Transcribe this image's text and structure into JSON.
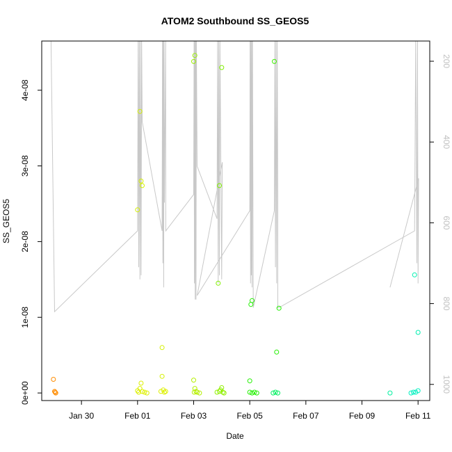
{
  "chart_data": {
    "type": "scatter",
    "title": "ATOM2 Southbound SS_GEOS5",
    "xlabel": "Date",
    "ylabel": "SS_GEOS5",
    "xlim": [
      "2016-01-28T14:00",
      "2016-02-11T10:00"
    ],
    "ylim": [
      -1e-09,
      4.65e-08
    ],
    "y2lim": [
      1040,
      150
    ],
    "x_ticks": [
      {
        "date": "2016-01-30T00:00",
        "label": "Jan 30"
      },
      {
        "date": "2016-02-01T00:00",
        "label": "Feb 01"
      },
      {
        "date": "2016-02-03T00:00",
        "label": "Feb 03"
      },
      {
        "date": "2016-02-05T00:00",
        "label": "Feb 05"
      },
      {
        "date": "2016-02-07T00:00",
        "label": "Feb 07"
      },
      {
        "date": "2016-02-09T00:00",
        "label": "Feb 09"
      },
      {
        "date": "2016-02-11T00:00",
        "label": "Feb 11"
      }
    ],
    "y_ticks": [
      {
        "value": 0,
        "label": "0e+00"
      },
      {
        "value": 1e-08,
        "label": "1e-08"
      },
      {
        "value": 2e-08,
        "label": "2e-08"
      },
      {
        "value": 3e-08,
        "label": "3e-08"
      },
      {
        "value": 4e-08,
        "label": "4e-08"
      }
    ],
    "y2_ticks": [
      {
        "value": 200,
        "label": "200"
      },
      {
        "value": 400,
        "label": "400"
      },
      {
        "value": 600,
        "label": "600"
      },
      {
        "value": 800,
        "label": "800"
      },
      {
        "value": 1000,
        "label": "1000"
      }
    ],
    "points": [
      {
        "date": "2016-01-29T00:00",
        "y": 1.8e-09,
        "color": "#ff8c00"
      },
      {
        "date": "2016-01-29T01:00",
        "y": 2e-10,
        "color": "#ff8c00"
      },
      {
        "date": "2016-01-29T02:00",
        "y": 0.0,
        "color": "#ff8c00"
      },
      {
        "date": "2016-01-29T01:30",
        "y": 1e-10,
        "color": "#ff8c00"
      },
      {
        "date": "2016-02-01T00:00",
        "y": 2.42e-08,
        "color": "#d4f000"
      },
      {
        "date": "2016-02-01T02:00",
        "y": 3.72e-08,
        "color": "#d4f000"
      },
      {
        "date": "2016-02-01T03:00",
        "y": 2.8e-08,
        "color": "#d4f000"
      },
      {
        "date": "2016-02-01T04:00",
        "y": 2.74e-08,
        "color": "#d4f000"
      },
      {
        "date": "2016-02-01T03:00",
        "y": 1.3e-09,
        "color": "#ddf000"
      },
      {
        "date": "2016-02-01T00:00",
        "y": 3e-10,
        "color": "#ddf000"
      },
      {
        "date": "2016-02-01T01:00",
        "y": 1e-10,
        "color": "#ddf000"
      },
      {
        "date": "2016-02-01T02:00",
        "y": 6e-10,
        "color": "#ddf000"
      },
      {
        "date": "2016-02-01T04:00",
        "y": 2e-10,
        "color": "#ddf000"
      },
      {
        "date": "2016-02-01T06:00",
        "y": 1e-10,
        "color": "#ddf000"
      },
      {
        "date": "2016-02-01T08:00",
        "y": 0.0,
        "color": "#ddf000"
      },
      {
        "date": "2016-02-01T21:00",
        "y": 6e-09,
        "color": "#d4f000"
      },
      {
        "date": "2016-02-01T21:00",
        "y": 2.2e-09,
        "color": "#d4f000"
      },
      {
        "date": "2016-02-01T20:00",
        "y": 2e-10,
        "color": "#ddf000"
      },
      {
        "date": "2016-02-01T22:00",
        "y": 4e-10,
        "color": "#ddf000"
      },
      {
        "date": "2016-02-01T23:00",
        "y": 1e-10,
        "color": "#ddf000"
      },
      {
        "date": "2016-02-02T00:00",
        "y": 2e-10,
        "color": "#ddf000"
      },
      {
        "date": "2016-02-03T00:00",
        "y": 4.38e-08,
        "color": "#9af000"
      },
      {
        "date": "2016-02-03T01:00",
        "y": 4.46e-08,
        "color": "#9af000"
      },
      {
        "date": "2016-02-03T00:00",
        "y": 1.7e-09,
        "color": "#b5f000"
      },
      {
        "date": "2016-02-03T01:00",
        "y": 6e-10,
        "color": "#b5f000"
      },
      {
        "date": "2016-02-03T02:00",
        "y": 2e-10,
        "color": "#b5f000"
      },
      {
        "date": "2016-02-03T00:30",
        "y": 1e-10,
        "color": "#b5f000"
      },
      {
        "date": "2016-02-03T03:00",
        "y": 1e-10,
        "color": "#b5f000"
      },
      {
        "date": "2016-02-03T05:00",
        "y": 0.0,
        "color": "#b5f000"
      },
      {
        "date": "2016-02-03T22:00",
        "y": 2.74e-08,
        "color": "#80f000"
      },
      {
        "date": "2016-02-04T00:00",
        "y": 4.3e-08,
        "color": "#80f000"
      },
      {
        "date": "2016-02-03T21:00",
        "y": 1.45e-08,
        "color": "#80f000"
      },
      {
        "date": "2016-02-03T23:00",
        "y": 4e-10,
        "color": "#90f000"
      },
      {
        "date": "2016-02-04T00:00",
        "y": 7e-10,
        "color": "#90f000"
      },
      {
        "date": "2016-02-03T20:00",
        "y": 1e-10,
        "color": "#90f000"
      },
      {
        "date": "2016-02-03T22:00",
        "y": 2e-10,
        "color": "#90f000"
      },
      {
        "date": "2016-02-04T01:00",
        "y": 1e-10,
        "color": "#90f000"
      },
      {
        "date": "2016-02-04T02:00",
        "y": 0.0,
        "color": "#90f000"
      },
      {
        "date": "2016-02-05T01:00",
        "y": 1.17e-08,
        "color": "#22f000"
      },
      {
        "date": "2016-02-05T02:00",
        "y": 1.22e-08,
        "color": "#22f000"
      },
      {
        "date": "2016-02-05T00:00",
        "y": 1.6e-09,
        "color": "#22f000"
      },
      {
        "date": "2016-02-05T00:00",
        "y": 1e-10,
        "color": "#22f000"
      },
      {
        "date": "2016-02-05T02:00",
        "y": 0.0,
        "color": "#22f000"
      },
      {
        "date": "2016-02-05T04:00",
        "y": 1e-10,
        "color": "#22f000"
      },
      {
        "date": "2016-02-05T06:00",
        "y": 0.0,
        "color": "#22f000"
      },
      {
        "date": "2016-02-05T21:00",
        "y": 4.38e-08,
        "color": "#3df000"
      },
      {
        "date": "2016-02-06T01:00",
        "y": 1.12e-08,
        "color": "#22f000"
      },
      {
        "date": "2016-02-05T23:00",
        "y": 5.4e-09,
        "color": "#22f000"
      },
      {
        "date": "2016-02-05T20:00",
        "y": 0.0,
        "color": "#00f060"
      },
      {
        "date": "2016-02-05T22:00",
        "y": 1e-10,
        "color": "#00f060"
      },
      {
        "date": "2016-02-06T00:00",
        "y": 0.0,
        "color": "#00f060"
      },
      {
        "date": "2016-02-10T00:00",
        "y": 0.0,
        "color": "#00f0a0"
      },
      {
        "date": "2016-02-10T21:00",
        "y": 1.56e-08,
        "color": "#00f0b0"
      },
      {
        "date": "2016-02-11T00:00",
        "y": 8e-09,
        "color": "#00f0b0"
      },
      {
        "date": "2016-02-10T18:00",
        "y": 0.0,
        "color": "#00f0c0"
      },
      {
        "date": "2016-02-10T20:00",
        "y": 1e-10,
        "color": "#00f0c0"
      },
      {
        "date": "2016-02-10T22:00",
        "y": 1e-10,
        "color": "#00f0c0"
      },
      {
        "date": "2016-02-11T00:00",
        "y": 3e-10,
        "color": "#00f0c0"
      }
    ],
    "altitude_trace": {
      "color": "#c8c8c8",
      "points": [
        [
          "2016-01-28T22:00",
          140
        ],
        [
          "2016-01-29T01:00",
          820
        ],
        [
          "2016-02-01T00:00",
          620
        ],
        [
          "2016-02-01T00:30",
          150
        ],
        [
          "2016-02-01T01:00",
          710
        ],
        [
          "2016-02-01T01:30",
          150
        ],
        [
          "2016-02-01T02:00",
          740
        ],
        [
          "2016-02-01T02:30",
          150
        ],
        [
          "2016-02-01T03:00",
          730
        ],
        [
          "2016-02-01T03:30",
          150
        ],
        [
          "2016-02-01T04:00",
          350
        ],
        [
          "2016-02-01T21:00",
          620
        ],
        [
          "2016-02-01T21:20",
          150
        ],
        [
          "2016-02-01T21:40",
          700
        ],
        [
          "2016-02-01T22:00",
          150
        ],
        [
          "2016-02-01T22:20",
          760
        ],
        [
          "2016-02-01T22:40",
          150
        ],
        [
          "2016-02-01T23:00",
          550
        ],
        [
          "2016-02-02T00:00",
          150
        ],
        [
          "2016-02-02T00:10",
          620
        ],
        [
          "2016-02-03T00:00",
          530
        ],
        [
          "2016-02-03T00:20",
          150
        ],
        [
          "2016-02-03T00:40",
          750
        ],
        [
          "2016-02-03T01:00",
          150
        ],
        [
          "2016-02-03T01:20",
          790
        ],
        [
          "2016-02-03T01:40",
          150
        ],
        [
          "2016-02-03T02:00",
          790
        ],
        [
          "2016-02-03T02:20",
          150
        ],
        [
          "2016-02-03T03:00",
          460
        ],
        [
          "2016-02-03T20:00",
          590
        ],
        [
          "2016-02-03T20:30",
          150
        ],
        [
          "2016-02-03T21:00",
          750
        ],
        [
          "2016-02-03T21:30",
          150
        ],
        [
          "2016-02-03T22:00",
          730
        ],
        [
          "2016-02-03T22:30",
          150
        ],
        [
          "2016-02-04T00:00",
          740
        ],
        [
          "2016-02-04T00:30",
          450
        ],
        [
          "2016-02-03T03:00",
          780
        ],
        [
          "2016-02-05T00:00",
          570
        ],
        [
          "2016-02-05T00:20",
          150
        ],
        [
          "2016-02-05T00:40",
          750
        ],
        [
          "2016-02-05T01:00",
          150
        ],
        [
          "2016-02-05T01:20",
          730
        ],
        [
          "2016-02-05T01:40",
          150
        ],
        [
          "2016-02-05T02:00",
          760
        ],
        [
          "2016-02-05T02:20",
          150
        ],
        [
          "2016-02-05T03:00",
          810
        ],
        [
          "2016-02-05T21:00",
          570
        ],
        [
          "2016-02-05T21:30",
          150
        ],
        [
          "2016-02-05T22:00",
          710
        ],
        [
          "2016-02-05T22:30",
          150
        ],
        [
          "2016-02-05T23:00",
          750
        ],
        [
          "2016-02-05T23:30",
          150
        ],
        [
          "2016-02-06T00:00",
          530
        ],
        [
          "2016-02-06T00:00",
          810
        ],
        [
          "2016-02-06T01:00",
          810
        ],
        [
          "2016-02-10T21:00",
          620
        ],
        [
          "2016-02-10T22:00",
          140
        ],
        [
          "2016-02-10T23:00",
          700
        ],
        [
          "2016-02-10T23:30",
          140
        ],
        [
          "2016-02-11T00:00",
          750
        ],
        [
          "2016-02-11T00:30",
          490
        ],
        [
          "2016-02-10T00:00",
          760
        ]
      ]
    }
  }
}
